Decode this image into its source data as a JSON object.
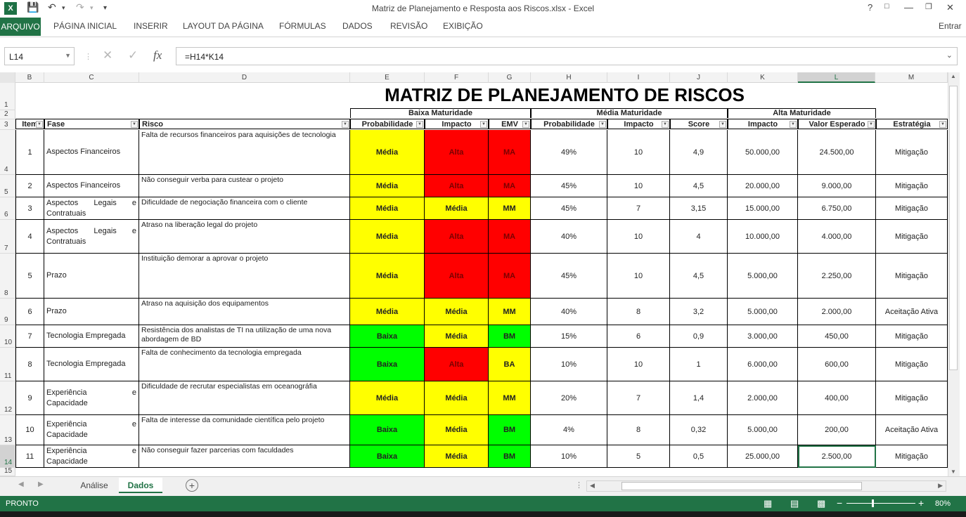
{
  "window": {
    "title": "Matriz de Planejamento e Resposta aos Riscos.xlsx - Excel",
    "app_icon": "X",
    "sign_in": "Entrar"
  },
  "ribbon": {
    "file": "ARQUIVO",
    "tabs": [
      "PÁGINA INICIAL",
      "INSERIR",
      "LAYOUT DA PÁGINA",
      "FÓRMULAS",
      "DADOS",
      "REVISÃO",
      "EXIBIÇÃO"
    ]
  },
  "formula_bar": {
    "name_box": "L14",
    "formula": "=H14*K14"
  },
  "columns": [
    "B",
    "C",
    "D",
    "E",
    "F",
    "G",
    "H",
    "I",
    "J",
    "K",
    "L",
    "M"
  ],
  "row_numbers": [
    "1",
    "2",
    "3",
    "4",
    "5",
    "6",
    "7",
    "8",
    "9",
    "10",
    "11",
    "12",
    "13",
    "14",
    "15"
  ],
  "sheet": {
    "title": "MATRIZ DE PLANEJAMENTO DE  RISCOS",
    "groups": {
      "baixa": "Baixa Maturidade",
      "media": "Média Maturidade",
      "alta": "Alta Maturidade"
    },
    "headers": {
      "item": "Item",
      "fase": "Fase",
      "risco": "Risco",
      "prob_baixa": "Probabilidade",
      "impacto_baixa": "Impacto",
      "emv": "EMV",
      "prob_media": "Probabilidade",
      "impacto_media": "Impacto",
      "score": "Score",
      "impacto_alta": "Impacto",
      "valor": "Valor Esperado",
      "estrategia": "Estratégia"
    },
    "rows": [
      {
        "item": "1",
        "fase": "Aspectos Financeiros",
        "risco": "Falta de recursos financeiros para aquisições de tecnologia",
        "prob": "Média",
        "prob_color": "yellow",
        "imp": "Alta",
        "imp_color": "red",
        "emv": "MA",
        "emv_color": "red",
        "prob_pct": "49%",
        "impacto": "10",
        "score": "4,9",
        "impacto_val": "50.000,00",
        "valor": "24.500,00",
        "estrategia": "Mitigação"
      },
      {
        "item": "2",
        "fase": "Aspectos Financeiros",
        "risco": "Não conseguir verba para custear o projeto",
        "prob": "Média",
        "prob_color": "yellow",
        "imp": "Alta",
        "imp_color": "red",
        "emv": "MA",
        "emv_color": "red",
        "prob_pct": "45%",
        "impacto": "10",
        "score": "4,5",
        "impacto_val": "20.000,00",
        "valor": "9.000,00",
        "estrategia": "Mitigação"
      },
      {
        "item": "3",
        "fase": "Aspectos Legais e Contratuais",
        "risco": "Dificuldade de negociação financeira com o cliente",
        "prob": "Média",
        "prob_color": "yellow",
        "imp": "Média",
        "imp_color": "yellow",
        "emv": "MM",
        "emv_color": "yellow",
        "prob_pct": "45%",
        "impacto": "7",
        "score": "3,15",
        "impacto_val": "15.000,00",
        "valor": "6.750,00",
        "estrategia": "Mitigação"
      },
      {
        "item": "4",
        "fase": "Aspectos Legais e Contratuais",
        "risco": "Atraso na liberação legal do projeto",
        "prob": "Média",
        "prob_color": "yellow",
        "imp": "Alta",
        "imp_color": "red",
        "emv": "MA",
        "emv_color": "red",
        "prob_pct": "40%",
        "impacto": "10",
        "score": "4",
        "impacto_val": "10.000,00",
        "valor": "4.000,00",
        "estrategia": "Mitigação"
      },
      {
        "item": "5",
        "fase": "Prazo",
        "risco": "Instituição demorar a aprovar o projeto",
        "prob": "Média",
        "prob_color": "yellow",
        "imp": "Alta",
        "imp_color": "red",
        "emv": "MA",
        "emv_color": "red",
        "prob_pct": "45%",
        "impacto": "10",
        "score": "4,5",
        "impacto_val": "5.000,00",
        "valor": "2.250,00",
        "estrategia": "Mitigação"
      },
      {
        "item": "6",
        "fase": "Prazo",
        "risco": "Atraso na aquisição dos equipamentos",
        "prob": "Média",
        "prob_color": "yellow",
        "imp": "Média",
        "imp_color": "yellow",
        "emv": "MM",
        "emv_color": "yellow",
        "prob_pct": "40%",
        "impacto": "8",
        "score": "3,2",
        "impacto_val": "5.000,00",
        "valor": "2.000,00",
        "estrategia": "Aceitação Ativa"
      },
      {
        "item": "7",
        "fase": "Tecnologia Empregada",
        "risco": "Resistência dos analistas de TI na utilização de uma nova abordagem de BD",
        "prob": "Baixa",
        "prob_color": "green",
        "imp": "Média",
        "imp_color": "yellow",
        "emv": "BM",
        "emv_color": "green",
        "prob_pct": "15%",
        "impacto": "6",
        "score": "0,9",
        "impacto_val": "3.000,00",
        "valor": "450,00",
        "estrategia": "Mitigação"
      },
      {
        "item": "8",
        "fase": "Tecnologia Empregada",
        "risco": "Falta de conhecimento da tecnologia empregada",
        "prob": "Baixa",
        "prob_color": "green",
        "imp": "Alta",
        "imp_color": "red",
        "emv": "BA",
        "emv_color": "yellow",
        "prob_pct": "10%",
        "impacto": "10",
        "score": "1",
        "impacto_val": "6.000,00",
        "valor": "600,00",
        "estrategia": "Mitigação"
      },
      {
        "item": "9",
        "fase": "Experiência e Capacidade",
        "risco": "Dificuldade de recrutar especialistas em oceanográfia",
        "prob": "Média",
        "prob_color": "yellow",
        "imp": "Média",
        "imp_color": "yellow",
        "emv": "MM",
        "emv_color": "yellow",
        "prob_pct": "20%",
        "impacto": "7",
        "score": "1,4",
        "impacto_val": "2.000,00",
        "valor": "400,00",
        "estrategia": "Mitigação"
      },
      {
        "item": "10",
        "fase": "Experiência e Capacidade",
        "risco": "Falta de interesse da comunidade científica pelo projeto",
        "prob": "Baixa",
        "prob_color": "green",
        "imp": "Média",
        "imp_color": "yellow",
        "emv": "BM",
        "emv_color": "green",
        "prob_pct": "4%",
        "impacto": "8",
        "score": "0,32",
        "impacto_val": "5.000,00",
        "valor": "200,00",
        "estrategia": "Aceitação Ativa"
      },
      {
        "item": "11",
        "fase": "Experiência e Capacidade",
        "risco": "Não conseguir fazer parcerias com faculdades",
        "prob": "Baixa",
        "prob_color": "green",
        "imp": "Média",
        "imp_color": "yellow",
        "emv": "BM",
        "emv_color": "green",
        "prob_pct": "10%",
        "impacto": "5",
        "score": "0,5",
        "impacto_val": "25.000,00",
        "valor": "2.500,00",
        "estrategia": "Mitigação"
      }
    ]
  },
  "sheet_tabs": [
    "Análise",
    "Dados"
  ],
  "active_tab": "Dados",
  "status": {
    "mode": "PRONTO",
    "zoom": "80%"
  },
  "colors": {
    "excel_green": "#217346",
    "yellow": "#ffff00",
    "red": "#ff0000",
    "green": "#00ff00"
  }
}
